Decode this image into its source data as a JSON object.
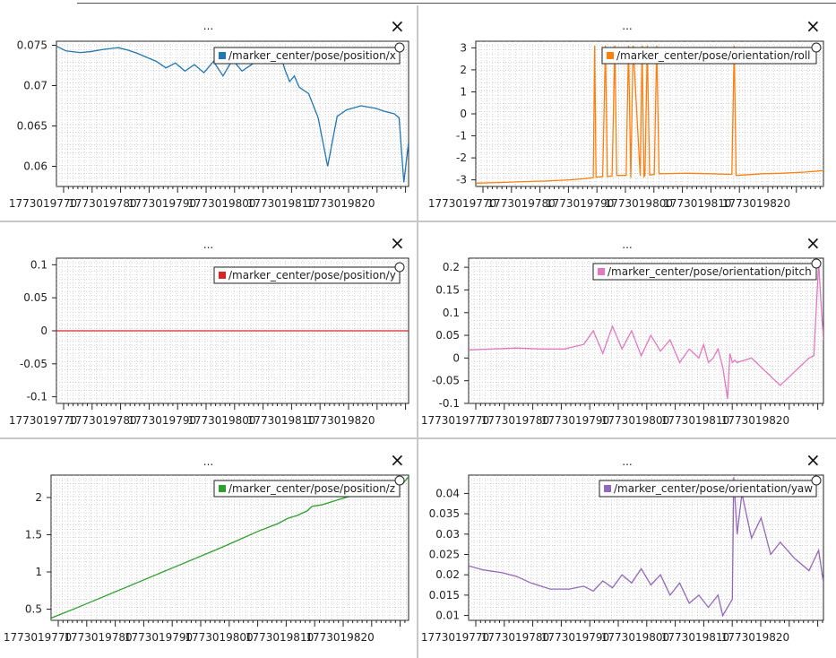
{
  "window": {
    "menu_label": "..."
  },
  "chart_data": [
    {
      "type": "line",
      "id": "px",
      "xlim": [
        1773019765,
        1773019839
      ],
      "ylim": [
        0.0575,
        0.0755
      ],
      "yticks": [
        0.06,
        0.065,
        0.07,
        0.075
      ],
      "ytick_labels": [
        "0.06",
        "0.065",
        "0.07",
        "0.075"
      ],
      "xtick_labels": [
        "1773019770",
        "1773019780",
        "1773019790",
        "1773019800",
        "1773019810",
        "1773019820"
      ],
      "series": [
        {
          "name": "/marker_center/pose/position/x",
          "color": "#1f77b4",
          "x": [
            1773019765,
            1773019767,
            1773019770,
            1773019772,
            1773019775,
            1773019778,
            1773019780,
            1773019782,
            1773019784,
            1773019786,
            1773019788,
            1773019790,
            1773019792,
            1773019794,
            1773019796,
            1773019798,
            1773019800,
            1773019802,
            1773019804,
            1773019806,
            1773019808,
            1773019810,
            1773019812,
            1773019813,
            1773019814,
            1773019815,
            1773019816,
            1773019818,
            1773019819,
            1773019820,
            1773019822,
            1773019824,
            1773019826,
            1773019829,
            1773019832,
            1773019834,
            1773019836,
            1773019837,
            1773019838,
            1773019839
          ],
          "y": [
            0.0749,
            0.0743,
            0.0741,
            0.0742,
            0.0745,
            0.0747,
            0.0744,
            0.074,
            0.0735,
            0.073,
            0.0722,
            0.0728,
            0.0718,
            0.0726,
            0.0716,
            0.073,
            0.0712,
            0.0732,
            0.0718,
            0.0726,
            0.0735,
            0.0728,
            0.074,
            0.072,
            0.0705,
            0.0712,
            0.0698,
            0.069,
            0.0675,
            0.066,
            0.06,
            0.0662,
            0.067,
            0.0675,
            0.0672,
            0.0668,
            0.0665,
            0.066,
            0.058,
            0.063
          ]
        }
      ]
    },
    {
      "type": "line",
      "id": "roll",
      "xlim": [
        1773019765,
        1773019839
      ],
      "ylim": [
        -3.3,
        3.3
      ],
      "yticks": [
        -3,
        -2,
        -1,
        0,
        1,
        2,
        3
      ],
      "ytick_labels": [
        "-3",
        "-2",
        "-1",
        "0",
        "1",
        "2",
        "3"
      ],
      "xtick_labels": [
        "1773019770",
        "1773019780",
        "1773019790",
        "1773019800",
        "1773019810",
        "1773019820"
      ],
      "series": [
        {
          "name": "/marker_center/pose/orientation/roll",
          "color": "#ff7f0e",
          "x": [
            1773019765,
            1773019770,
            1773019775,
            1773019780,
            1773019785,
            1773019788,
            1773019790,
            1773019790.3,
            1773019790.6,
            1773019792,
            1773019792.6,
            1773019793,
            1773019794,
            1773019794.6,
            1773019795,
            1773019797,
            1773019797.5,
            1773019798,
            1773019798.5,
            1773019800,
            1773019800.4,
            1773019800.8,
            1773019801,
            1773019801.5,
            1773019802,
            1773019803,
            1773019803.5,
            1773019804,
            1773019810,
            1773019815,
            1773019819.5,
            1773019820,
            1773019820.4,
            1773019822,
            1773019826,
            1773019830,
            1773019835,
            1773019839
          ],
          "y": [
            -3.15,
            -3.12,
            -3.08,
            -3.05,
            -3.0,
            -2.95,
            -2.9,
            3.1,
            -2.88,
            -2.85,
            3.1,
            -2.85,
            -2.82,
            3.1,
            -2.8,
            -2.8,
            3.1,
            -2.9,
            3.1,
            -2.82,
            3.1,
            -2.85,
            -2.8,
            3.1,
            -2.78,
            -2.75,
            3.1,
            -2.72,
            -2.7,
            -2.72,
            -2.75,
            3.1,
            -2.8,
            -2.78,
            -2.72,
            -2.7,
            -2.65,
            -2.58
          ]
        }
      ]
    },
    {
      "type": "line",
      "id": "py",
      "xlim": [
        1773019765,
        1773019839
      ],
      "ylim": [
        -0.11,
        0.11
      ],
      "yticks": [
        -0.1,
        -0.05,
        0,
        0.05,
        0.1
      ],
      "ytick_labels": [
        "-0.1",
        "-0.05",
        "0",
        "0.05",
        "0.1"
      ],
      "xtick_labels": [
        "1773019770",
        "1773019780",
        "1773019790",
        "1773019800",
        "1773019810",
        "1773019820"
      ],
      "series": [
        {
          "name": "/marker_center/pose/position/y",
          "color": "#d62728",
          "x": [
            1773019765,
            1773019839
          ],
          "y": [
            0,
            0
          ]
        }
      ]
    },
    {
      "type": "line",
      "id": "pitch",
      "xlim": [
        1773019765,
        1773019839
      ],
      "ylim": [
        -0.1,
        0.22
      ],
      "yticks": [
        -0.1,
        -0.05,
        0,
        0.05,
        0.1,
        0.15,
        0.2
      ],
      "ytick_labels": [
        "-0.1",
        "-0.05",
        "0",
        "0.05",
        "0.1",
        "0.15",
        "0.2"
      ],
      "xtick_labels": [
        "1773019770",
        "1773019780",
        "1773019790",
        "1773019800",
        "1773019810",
        "1773019820"
      ],
      "series": [
        {
          "name": "/marker_center/pose/orientation/pitch",
          "color": "#e377c2",
          "x": [
            1773019765,
            1773019770,
            1773019775,
            1773019780,
            1773019785,
            1773019787,
            1773019789,
            1773019791,
            1773019793,
            1773019795,
            1773019797,
            1773019799,
            1773019801,
            1773019803,
            1773019805,
            1773019807,
            1773019809,
            1773019811,
            1773019813,
            1773019814,
            1773019815,
            1773019816,
            1773019817,
            1773019818,
            1773019819,
            1773019819.5,
            1773019820,
            1773019820.5,
            1773019821,
            1773019824,
            1773019830,
            1773019836,
            1773019837,
            1773019838,
            1773019838.5,
            1773019839
          ],
          "y": [
            0.018,
            0.02,
            0.022,
            0.02,
            0.02,
            0.025,
            0.03,
            0.06,
            0.01,
            0.07,
            0.02,
            0.06,
            0.005,
            0.05,
            0.015,
            0.04,
            -0.01,
            0.02,
            0.0,
            0.03,
            -0.01,
            0.0,
            0.02,
            -0.02,
            -0.09,
            0.01,
            -0.01,
            -0.005,
            -0.01,
            0.0,
            -0.06,
            0.0,
            0.005,
            0.21,
            0.12,
            0.04
          ]
        }
      ]
    },
    {
      "type": "line",
      "id": "pz",
      "xlim": [
        1773019765,
        1773019839
      ],
      "ylim": [
        0.35,
        2.3
      ],
      "yticks": [
        0.5,
        1,
        1.5,
        2
      ],
      "ytick_labels": [
        "0.5",
        "1",
        "1.5",
        "2"
      ],
      "xtick_labels": [
        "1773019770",
        "1773019780",
        "1773019790",
        "1773019800",
        "1773019810",
        "1773019820"
      ],
      "series": [
        {
          "name": "/marker_center/pose/position/z",
          "color": "#2ca02c",
          "x": [
            1773019765,
            1773019770,
            1773019780,
            1773019790,
            1773019800,
            1773019808,
            1773019812,
            1773019814,
            1773019816,
            1773019818,
            1773019819,
            1773019821,
            1773019823,
            1773019826,
            1773019829,
            1773019832,
            1773019835,
            1773019838,
            1773019839
          ],
          "y": [
            0.38,
            0.51,
            0.78,
            1.05,
            1.32,
            1.55,
            1.65,
            1.72,
            1.76,
            1.82,
            1.88,
            1.9,
            1.94,
            2.0,
            2.05,
            2.08,
            2.12,
            2.2,
            2.28
          ]
        }
      ]
    },
    {
      "type": "line",
      "id": "yaw",
      "xlim": [
        1773019765,
        1773019839
      ],
      "ylim": [
        0.0088,
        0.0445
      ],
      "yticks": [
        0.01,
        0.015,
        0.02,
        0.025,
        0.03,
        0.035,
        0.04
      ],
      "ytick_labels": [
        "0.01",
        "0.015",
        "0.02",
        "0.025",
        "0.03",
        "0.035",
        "0.04"
      ],
      "xtick_labels": [
        "1773019770",
        "1773019780",
        "1773019790",
        "1773019800",
        "1773019810",
        "1773019820"
      ],
      "series": [
        {
          "name": "/marker_center/pose/orientation/yaw",
          "color": "#9467bd",
          "x": [
            1773019765,
            1773019768,
            1773019772,
            1773019775,
            1773019778,
            1773019782,
            1773019786,
            1773019789,
            1773019791,
            1773019793,
            1773019795,
            1773019797,
            1773019799,
            1773019801,
            1773019803,
            1773019805,
            1773019807,
            1773019809,
            1773019811,
            1773019813,
            1773019815,
            1773019817,
            1773019818,
            1773019819,
            1773019820,
            1773019820.3,
            1773019821,
            1773019822,
            1773019824,
            1773019826,
            1773019828,
            1773019830,
            1773019833,
            1773019836,
            1773019838,
            1773019839
          ],
          "y": [
            0.0222,
            0.0212,
            0.0205,
            0.0196,
            0.018,
            0.0165,
            0.0165,
            0.0172,
            0.016,
            0.0185,
            0.0168,
            0.02,
            0.018,
            0.0215,
            0.0175,
            0.02,
            0.015,
            0.018,
            0.013,
            0.015,
            0.012,
            0.015,
            0.01,
            0.012,
            0.014,
            0.044,
            0.03,
            0.04,
            0.029,
            0.034,
            0.025,
            0.028,
            0.024,
            0.021,
            0.026,
            0.018
          ]
        }
      ]
    }
  ]
}
